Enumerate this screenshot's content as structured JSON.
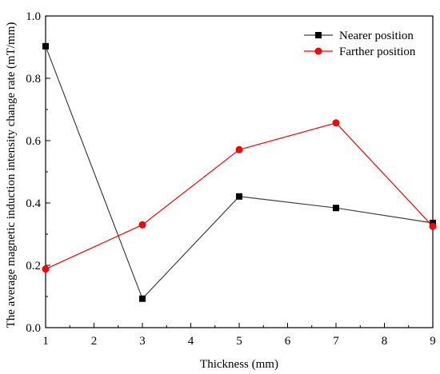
{
  "chart_data": {
    "type": "line",
    "title": "",
    "xlabel": "Thickness (mm)",
    "ylabel": "The average magnetic induction intensity change rate (mT/mm)",
    "xlim": [
      1,
      9
    ],
    "ylim": [
      0,
      1.0
    ],
    "x_ticks": [
      "1",
      "2",
      "3",
      "4",
      "5",
      "6",
      "7",
      "8",
      "9"
    ],
    "y_ticks": [
      "0.0",
      "0.2",
      "0.4",
      "0.6",
      "0.8",
      "1.0"
    ],
    "grid": false,
    "legend_position": "top-right",
    "x": [
      1,
      3,
      5,
      7,
      9
    ],
    "series": [
      {
        "name": "Nearer position",
        "values": [
          0.903,
          0.093,
          0.421,
          0.384,
          0.336
        ],
        "color": "#000000",
        "line_color": "#404040",
        "marker": "square"
      },
      {
        "name": "Farther position",
        "values": [
          0.188,
          0.33,
          0.571,
          0.657,
          0.325
        ],
        "color": "#ff0000",
        "line_color": "#ff0000",
        "marker": "circle"
      }
    ]
  }
}
